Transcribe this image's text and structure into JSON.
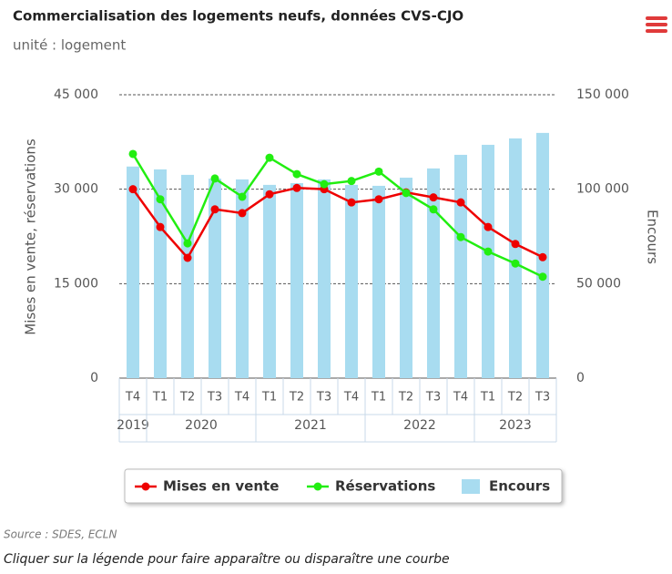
{
  "chart_data": {
    "type": "bar-line",
    "title": "Commercialisation des logements neufs, données CVS-CJO",
    "subtitle": "unité : logement",
    "y_label": "Mises en vente, réservations",
    "y2_label": "Encours",
    "category_groups": [
      {
        "name": "2019",
        "categories": [
          "T4"
        ]
      },
      {
        "name": "2020",
        "categories": [
          "T1",
          "T2",
          "T3",
          "T4"
        ]
      },
      {
        "name": "2021",
        "categories": [
          "T1",
          "T2",
          "T3",
          "T4"
        ]
      },
      {
        "name": "2022",
        "categories": [
          "T1",
          "T2",
          "T3",
          "T4"
        ]
      },
      {
        "name": "2023",
        "categories": [
          "T1",
          "T2",
          "T3"
        ]
      }
    ],
    "series": [
      {
        "name": "Mises en vente",
        "type": "line",
        "color": "#ee0000",
        "axis": "y",
        "values": [
          30000,
          24000,
          19100,
          26800,
          26200,
          29200,
          30200,
          30000,
          27900,
          28400,
          29500,
          28700,
          27900,
          24000,
          21300,
          19200
        ]
      },
      {
        "name": "Réservations",
        "type": "line",
        "color": "#22ee11",
        "axis": "y",
        "values": [
          35600,
          28400,
          21400,
          31700,
          28800,
          35000,
          32400,
          30800,
          31300,
          32800,
          29400,
          26800,
          22400,
          20100,
          18200,
          16100
        ]
      },
      {
        "name": "Encours",
        "type": "bar",
        "color": "#a8dcf0",
        "axis": "y2",
        "values": [
          112000,
          110500,
          107600,
          105600,
          105200,
          102300,
          103200,
          105200,
          102300,
          101800,
          106100,
          111000,
          118200,
          123500,
          126900,
          129800
        ]
      }
    ],
    "ylim": [
      0,
      45000
    ],
    "yticks": [
      0,
      {
        "value": 15000,
        "label": "15 000"
      },
      {
        "value": 30000,
        "label": "30 000"
      },
      {
        "value": 45000,
        "label": "45 000"
      }
    ],
    "y2lim": [
      0,
      150000
    ],
    "y2ticks": [
      0,
      {
        "value": 50000,
        "label": "50 000"
      },
      {
        "value": 100000,
        "label": "100 000"
      },
      {
        "value": 150000,
        "label": "150 000"
      }
    ],
    "grid": true,
    "legend": "bottom",
    "source": "Source : SDES, ECLN",
    "note": "Cliquer sur la légende pour faire apparaître ou disparaître une courbe"
  }
}
